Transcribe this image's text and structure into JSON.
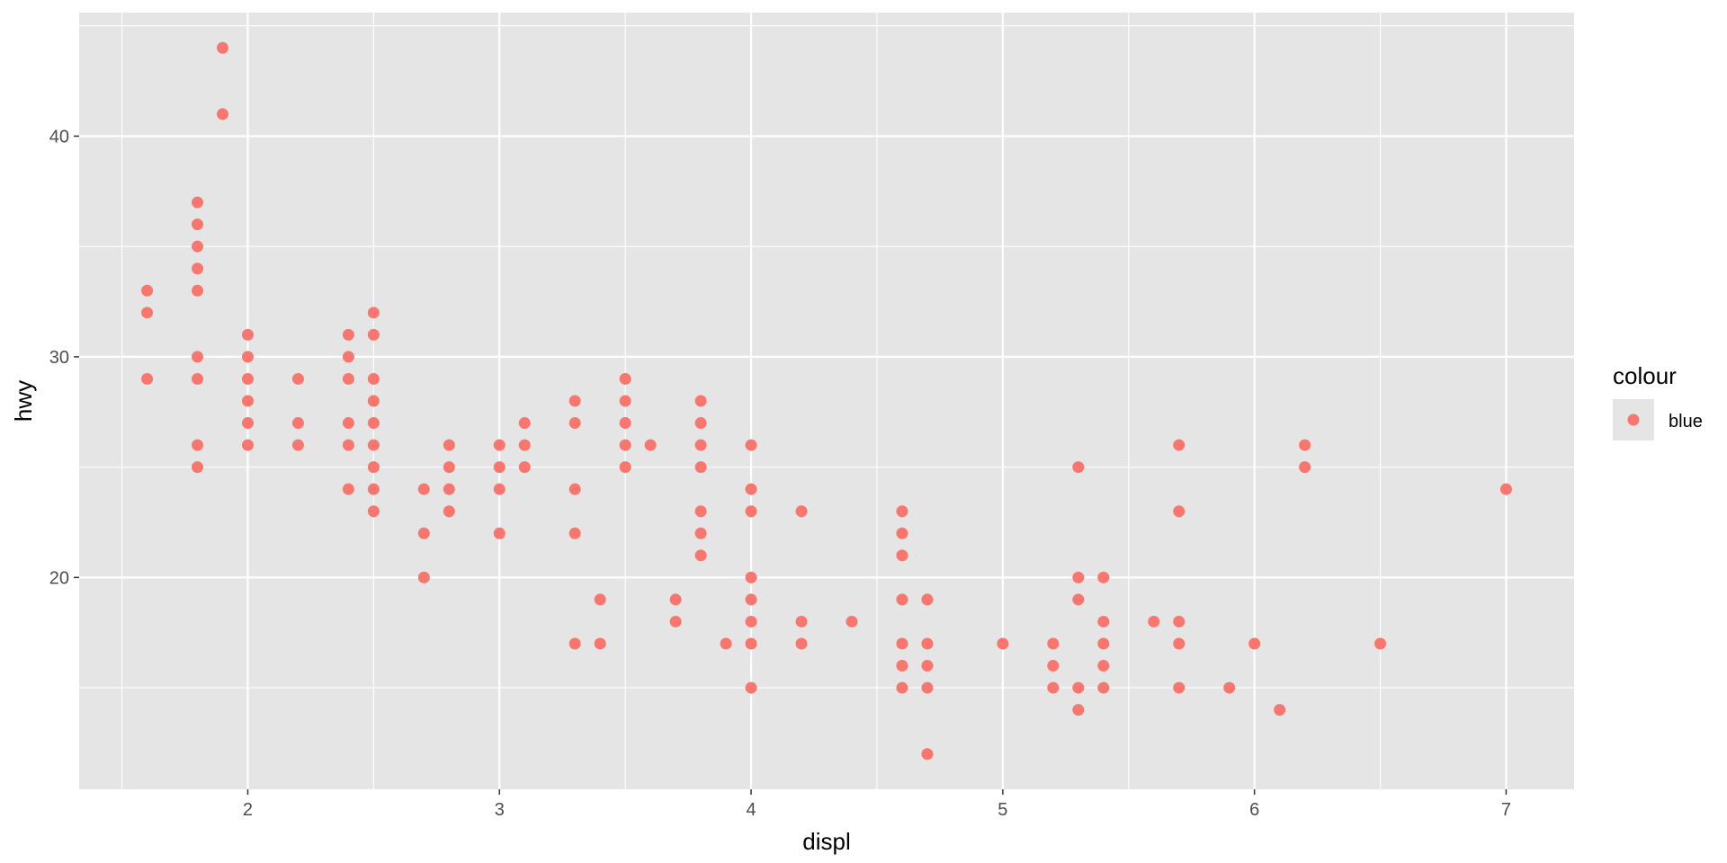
{
  "chart_data": {
    "type": "scatter",
    "title": "",
    "xlabel": "displ",
    "ylabel": "hwy",
    "xlim": [
      1.33,
      7.27
    ],
    "ylim": [
      10.4,
      45.6
    ],
    "x_ticks": [
      2,
      3,
      4,
      5,
      6,
      7
    ],
    "y_ticks": [
      20,
      30,
      40
    ],
    "x_tick_labels": [
      "2",
      "3",
      "4",
      "5",
      "6",
      "7"
    ],
    "y_tick_labels": [
      "20",
      "30",
      "40"
    ],
    "grid": true,
    "legend": {
      "title": "colour",
      "position": "right",
      "entries": [
        {
          "label": "blue",
          "color": "#f8766d"
        }
      ]
    },
    "colors": {
      "panel": "#e5e5e5",
      "grid": "#ffffff",
      "point": "#f8766d",
      "legend_key": "#e5e5e5"
    },
    "series": [
      {
        "points": [
          [
            1.6,
            33
          ],
          [
            1.6,
            32
          ],
          [
            1.6,
            29
          ],
          [
            1.8,
            37
          ],
          [
            1.8,
            36
          ],
          [
            1.8,
            35
          ],
          [
            1.8,
            34
          ],
          [
            1.8,
            33
          ],
          [
            1.8,
            30
          ],
          [
            1.8,
            29
          ],
          [
            1.8,
            26
          ],
          [
            1.8,
            25
          ],
          [
            1.9,
            44
          ],
          [
            1.9,
            41
          ],
          [
            2.0,
            31
          ],
          [
            2.0,
            30
          ],
          [
            2.0,
            29
          ],
          [
            2.0,
            28
          ],
          [
            2.0,
            27
          ],
          [
            2.0,
            26
          ],
          [
            2.2,
            29
          ],
          [
            2.2,
            27
          ],
          [
            2.2,
            26
          ],
          [
            2.4,
            31
          ],
          [
            2.4,
            30
          ],
          [
            2.4,
            29
          ],
          [
            2.4,
            27
          ],
          [
            2.4,
            26
          ],
          [
            2.4,
            24
          ],
          [
            2.5,
            32
          ],
          [
            2.5,
            31
          ],
          [
            2.5,
            29
          ],
          [
            2.5,
            28
          ],
          [
            2.5,
            27
          ],
          [
            2.5,
            26
          ],
          [
            2.5,
            25
          ],
          [
            2.5,
            24
          ],
          [
            2.5,
            23
          ],
          [
            2.7,
            24
          ],
          [
            2.7,
            22
          ],
          [
            2.7,
            20
          ],
          [
            2.8,
            26
          ],
          [
            2.8,
            25
          ],
          [
            2.8,
            24
          ],
          [
            2.8,
            23
          ],
          [
            3.0,
            26
          ],
          [
            3.0,
            25
          ],
          [
            3.0,
            24
          ],
          [
            3.0,
            22
          ],
          [
            3.1,
            27
          ],
          [
            3.1,
            26
          ],
          [
            3.1,
            25
          ],
          [
            3.3,
            28
          ],
          [
            3.3,
            27
          ],
          [
            3.3,
            24
          ],
          [
            3.3,
            22
          ],
          [
            3.3,
            17
          ],
          [
            3.4,
            19
          ],
          [
            3.4,
            17
          ],
          [
            3.5,
            29
          ],
          [
            3.5,
            28
          ],
          [
            3.5,
            27
          ],
          [
            3.5,
            26
          ],
          [
            3.5,
            25
          ],
          [
            3.6,
            26
          ],
          [
            3.7,
            19
          ],
          [
            3.7,
            18
          ],
          [
            3.8,
            28
          ],
          [
            3.8,
            27
          ],
          [
            3.8,
            26
          ],
          [
            3.8,
            25
          ],
          [
            3.8,
            23
          ],
          [
            3.8,
            22
          ],
          [
            3.8,
            21
          ],
          [
            3.9,
            17
          ],
          [
            4.0,
            26
          ],
          [
            4.0,
            24
          ],
          [
            4.0,
            23
          ],
          [
            4.0,
            20
          ],
          [
            4.0,
            19
          ],
          [
            4.0,
            18
          ],
          [
            4.0,
            17
          ],
          [
            4.0,
            15
          ],
          [
            4.2,
            23
          ],
          [
            4.2,
            18
          ],
          [
            4.2,
            17
          ],
          [
            4.4,
            18
          ],
          [
            4.6,
            23
          ],
          [
            4.6,
            22
          ],
          [
            4.6,
            21
          ],
          [
            4.6,
            19
          ],
          [
            4.6,
            17
          ],
          [
            4.6,
            16
          ],
          [
            4.6,
            15
          ],
          [
            4.7,
            19
          ],
          [
            4.7,
            17
          ],
          [
            4.7,
            16
          ],
          [
            4.7,
            15
          ],
          [
            4.7,
            12
          ],
          [
            5.0,
            17
          ],
          [
            5.2,
            17
          ],
          [
            5.2,
            16
          ],
          [
            5.2,
            15
          ],
          [
            5.3,
            25
          ],
          [
            5.3,
            20
          ],
          [
            5.3,
            19
          ],
          [
            5.3,
            15
          ],
          [
            5.3,
            14
          ],
          [
            5.4,
            20
          ],
          [
            5.4,
            18
          ],
          [
            5.4,
            17
          ],
          [
            5.4,
            16
          ],
          [
            5.4,
            15
          ],
          [
            5.6,
            18
          ],
          [
            5.7,
            26
          ],
          [
            5.7,
            23
          ],
          [
            5.7,
            18
          ],
          [
            5.7,
            17
          ],
          [
            5.7,
            15
          ],
          [
            5.9,
            15
          ],
          [
            6.0,
            17
          ],
          [
            6.1,
            14
          ],
          [
            6.2,
            26
          ],
          [
            6.2,
            25
          ],
          [
            6.5,
            17
          ],
          [
            7.0,
            24
          ]
        ]
      }
    ]
  }
}
